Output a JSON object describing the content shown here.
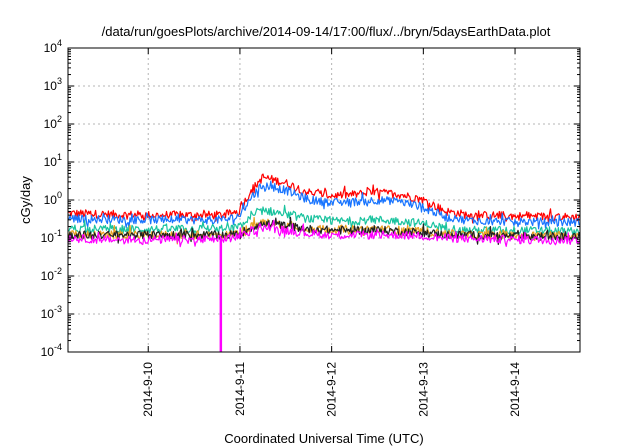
{
  "chart_data": {
    "type": "line",
    "title": "/data/run/goesPlots/archive/2014-09-14/17:00/flux/../bryn/5daysEarthData.plot",
    "xlabel": "Coordinated Universal Time (UTC)",
    "ylabel": "cGy/day",
    "y_scale": "log",
    "ylim": [
      0.0001,
      10000
    ],
    "xlim": [
      "2014-09-09 03:00",
      "2014-09-14 17:00"
    ],
    "grid": true,
    "x_ticks": [
      "2014-9-10",
      "2014-9-11",
      "2014-9-12",
      "2014-9-13",
      "2014-9-14"
    ],
    "y_ticks": [
      {
        "base": "10",
        "exp": "-4",
        "value": 0.0001
      },
      {
        "base": "10",
        "exp": "-3",
        "value": 0.001
      },
      {
        "base": "10",
        "exp": "-2",
        "value": 0.01
      },
      {
        "base": "10",
        "exp": "-1",
        "value": 0.1
      },
      {
        "base": "10",
        "exp": "0",
        "value": 1
      },
      {
        "base": "10",
        "exp": "1",
        "value": 10
      },
      {
        "base": "10",
        "exp": "2",
        "value": 100
      },
      {
        "base": "10",
        "exp": "3",
        "value": 1000
      },
      {
        "base": "10",
        "exp": "4",
        "value": 10000
      }
    ],
    "x": [
      "2014-09-09 03:00",
      "2014-09-09 12:00",
      "2014-09-10 00:00",
      "2014-09-10 12:00",
      "2014-09-10 18:00",
      "2014-09-10 21:00",
      "2014-09-11 00:00",
      "2014-09-11 03:00",
      "2014-09-11 06:00",
      "2014-09-11 12:00",
      "2014-09-11 18:00",
      "2014-09-12 00:00",
      "2014-09-12 06:00",
      "2014-09-12 12:00",
      "2014-09-12 18:00",
      "2014-09-13 00:00",
      "2014-09-13 06:00",
      "2014-09-13 12:00",
      "2014-09-14 00:00",
      "2014-09-14 12:00",
      "2014-09-14 17:00"
    ],
    "series": [
      {
        "color": "#ff0000",
        "values": [
          0.45,
          0.42,
          0.4,
          0.4,
          0.4,
          0.42,
          0.55,
          1.8,
          4.0,
          2.8,
          1.6,
          1.3,
          1.4,
          1.6,
          1.4,
          1.0,
          0.5,
          0.4,
          0.38,
          0.36,
          0.35
        ]
      },
      {
        "color": "#1874ff",
        "values": [
          0.33,
          0.31,
          0.3,
          0.3,
          0.3,
          0.31,
          0.4,
          1.2,
          2.5,
          1.8,
          1.0,
          0.85,
          0.9,
          1.0,
          0.9,
          0.65,
          0.35,
          0.29,
          0.27,
          0.26,
          0.26
        ]
      },
      {
        "color": "#19c39e",
        "values": [
          0.18,
          0.17,
          0.17,
          0.17,
          0.17,
          0.17,
          0.2,
          0.35,
          0.55,
          0.42,
          0.32,
          0.28,
          0.28,
          0.3,
          0.28,
          0.24,
          0.18,
          0.16,
          0.16,
          0.15,
          0.15
        ]
      },
      {
        "color": "#e8a020",
        "values": [
          0.13,
          0.12,
          0.12,
          0.12,
          0.12,
          0.12,
          0.14,
          0.2,
          0.26,
          0.22,
          0.18,
          0.17,
          0.17,
          0.17,
          0.16,
          0.15,
          0.13,
          0.12,
          0.12,
          0.12,
          0.12
        ]
      },
      {
        "color": "#202020",
        "values": [
          0.12,
          0.12,
          0.12,
          0.12,
          0.12,
          0.12,
          0.13,
          0.19,
          0.24,
          0.21,
          0.17,
          0.16,
          0.16,
          0.16,
          0.15,
          0.14,
          0.12,
          0.12,
          0.11,
          0.11,
          0.11
        ]
      },
      {
        "color": "#ff00ff",
        "values": [
          0.1,
          0.09,
          0.09,
          0.09,
          0.09,
          0.1,
          0.11,
          0.15,
          0.19,
          0.16,
          0.13,
          0.12,
          0.12,
          0.12,
          0.12,
          0.11,
          0.1,
          0.095,
          0.09,
          0.09,
          0.09
        ]
      }
    ],
    "annotations": [
      {
        "type": "dropout",
        "series_color": "#ff00ff",
        "x": "2014-09-10 19:00",
        "y_min": 0.0001,
        "y_max": 0.1
      }
    ]
  }
}
